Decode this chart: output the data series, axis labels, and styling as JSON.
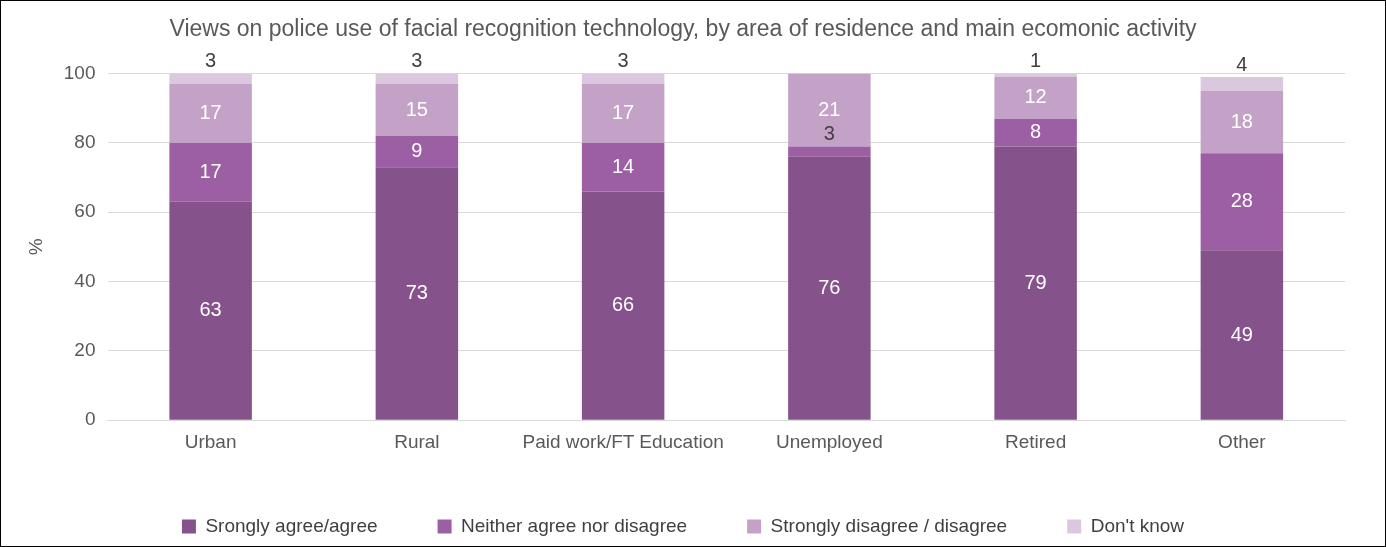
{
  "chart_data": {
    "type": "bar",
    "title": "Views on police use of facial recognition technology, by area of residence and main ecomonic activity",
    "ylabel": "%",
    "categories": [
      "Urban",
      "Rural",
      "Paid work/FT Education",
      "Unemployed",
      "Retired",
      "Other"
    ],
    "stacked": true,
    "data_labels": true,
    "legend": "bottom",
    "grid": "y",
    "ylim": [
      0,
      100
    ],
    "yticks": [
      0,
      20,
      40,
      60,
      80,
      100
    ],
    "series": [
      {
        "name": "Srongly agree/agree",
        "color": "#86528c",
        "values": [
          63,
          73,
          66,
          76,
          79,
          49
        ]
      },
      {
        "name": "Neither agree nor disagree",
        "color": "#9c5fa3",
        "values": [
          17,
          9,
          14,
          3,
          8,
          28
        ]
      },
      {
        "name": "Strongly disagree / disagree",
        "color": "#c4a2c8",
        "values": [
          17,
          15,
          17,
          21,
          12,
          18
        ]
      },
      {
        "name": "Don't know",
        "color": "#dcc8de",
        "values": [
          3,
          3,
          3,
          null,
          1,
          4
        ]
      }
    ]
  }
}
